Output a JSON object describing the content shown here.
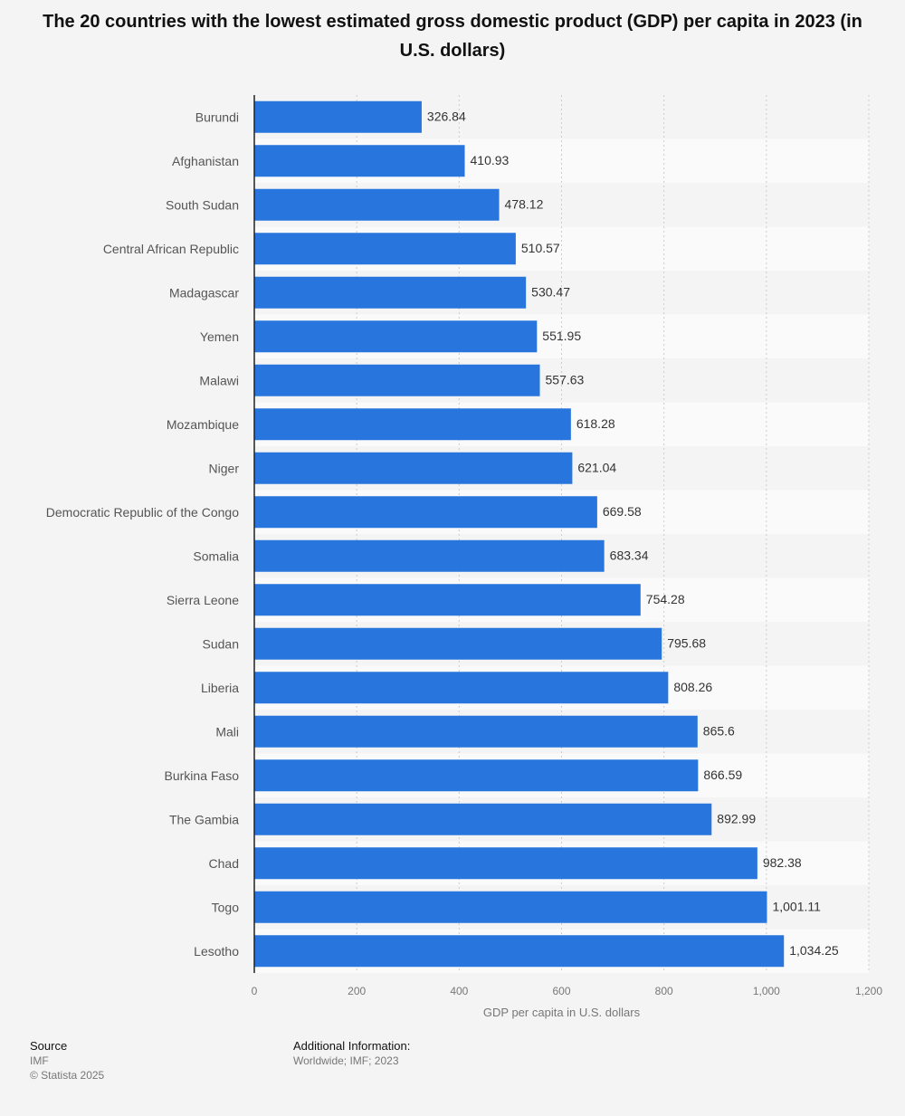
{
  "chart_data": {
    "type": "bar",
    "orientation": "horizontal",
    "title": "The 20 countries with the lowest estimated gross domestic product (GDP) per capita in 2023 (in U.S. dollars)",
    "xlabel": "GDP per capita in U.S. dollars",
    "ylabel": "",
    "xlim": [
      0,
      1200
    ],
    "ticks": [
      0,
      200,
      400,
      600,
      800,
      1000,
      1200
    ],
    "tick_labels": [
      "0",
      "200",
      "400",
      "600",
      "800",
      "1,000",
      "1,200"
    ],
    "grid": true,
    "bar_color": "#2876dd",
    "categories": [
      "Burundi",
      "Afghanistan",
      "South Sudan",
      "Central African Republic",
      "Madagascar",
      "Yemen",
      "Malawi",
      "Mozambique",
      "Niger",
      "Democratic Republic of the Congo",
      "Somalia",
      "Sierra Leone",
      "Sudan",
      "Liberia",
      "Mali",
      "Burkina Faso",
      "The Gambia",
      "Chad",
      "Togo",
      "Lesotho"
    ],
    "values": [
      326.84,
      410.93,
      478.12,
      510.57,
      530.47,
      551.95,
      557.63,
      618.28,
      621.04,
      669.58,
      683.34,
      754.28,
      795.68,
      808.26,
      865.6,
      866.59,
      892.99,
      982.38,
      1001.11,
      1034.25
    ],
    "value_labels": [
      "326.84",
      "410.93",
      "478.12",
      "510.57",
      "530.47",
      "551.95",
      "557.63",
      "618.28",
      "621.04",
      "669.58",
      "683.34",
      "754.28",
      "795.68",
      "808.26",
      "865.6",
      "866.59",
      "892.99",
      "982.38",
      "1,001.11",
      "1,034.25"
    ]
  },
  "footer": {
    "source_heading": "Source",
    "source_text": "IMF",
    "copyright": "© Statista 2025",
    "additional_heading": "Additional Information:",
    "additional_text": "Worldwide; IMF; 2023"
  }
}
